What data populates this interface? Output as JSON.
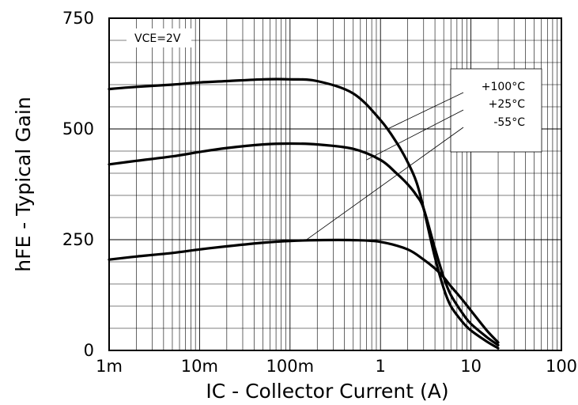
{
  "chart_data": {
    "type": "line",
    "title": "",
    "xlabel": "IC - Collector Current (A)",
    "ylabel": "hFE - Typical Gain",
    "x_scale": "log",
    "xlim": [
      0.001,
      100
    ],
    "ylim": [
      0,
      750
    ],
    "x_ticks": [
      {
        "value": 0.001,
        "label": "1m"
      },
      {
        "value": 0.01,
        "label": "10m"
      },
      {
        "value": 0.1,
        "label": "100m"
      },
      {
        "value": 1,
        "label": "1"
      },
      {
        "value": 10,
        "label": "10"
      },
      {
        "value": 100,
        "label": "100"
      }
    ],
    "y_ticks": [
      {
        "value": 0,
        "label": "0"
      },
      {
        "value": 250,
        "label": "250"
      },
      {
        "value": 500,
        "label": "500"
      },
      {
        "value": 750,
        "label": "750"
      }
    ],
    "grid": true,
    "annotation": "VCE=2V",
    "legend_position": "top-right",
    "series": [
      {
        "name": "+100°C",
        "x": [
          0.001,
          0.002,
          0.005,
          0.01,
          0.02,
          0.05,
          0.1,
          0.2,
          0.5,
          1,
          1.5,
          2,
          2.5,
          3,
          4,
          5,
          6,
          8,
          10,
          15,
          20
        ],
        "y": [
          590,
          595,
          600,
          605,
          608,
          612,
          612,
          608,
          580,
          520,
          470,
          425,
          380,
          320,
          210,
          140,
          100,
          65,
          45,
          20,
          5
        ]
      },
      {
        "name": "+25°C",
        "x": [
          0.001,
          0.002,
          0.005,
          0.01,
          0.02,
          0.05,
          0.1,
          0.2,
          0.5,
          1,
          1.5,
          2,
          2.5,
          3,
          4,
          5,
          6,
          8,
          10,
          15,
          20
        ],
        "y": [
          420,
          428,
          438,
          448,
          457,
          465,
          467,
          465,
          455,
          430,
          400,
          375,
          350,
          320,
          230,
          165,
          125,
          85,
          60,
          30,
          12
        ]
      },
      {
        "name": "-55°C",
        "x": [
          0.001,
          0.002,
          0.005,
          0.01,
          0.02,
          0.05,
          0.1,
          0.2,
          0.5,
          1,
          2,
          3,
          4,
          5,
          6,
          8,
          10,
          15,
          20
        ],
        "y": [
          205,
          212,
          220,
          228,
          235,
          243,
          247,
          249,
          249,
          245,
          228,
          205,
          185,
          165,
          145,
          115,
          90,
          45,
          18
        ]
      }
    ]
  }
}
